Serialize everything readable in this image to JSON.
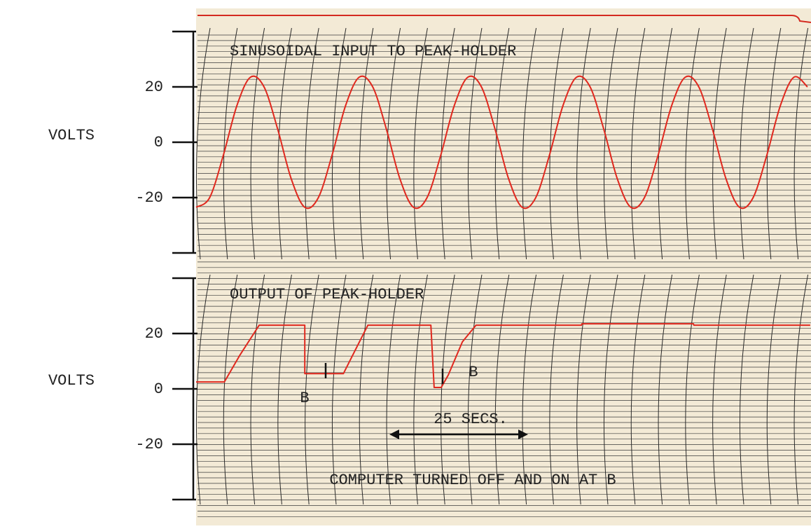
{
  "chart_data": [
    {
      "type": "line",
      "title": "SINUSOIDAL INPUT TO PEAK-HOLDER",
      "y_label": "VOLTS",
      "x": [
        0,
        2.5,
        5,
        7.5,
        10,
        12.5,
        15,
        17.5,
        20,
        22.5,
        25,
        27.5,
        30,
        32.5,
        35,
        37.5,
        40,
        42.5,
        45,
        47.5,
        50,
        52.5,
        55,
        57.5,
        60,
        62.5,
        65,
        67.5,
        70,
        72.5,
        75,
        77.5,
        80,
        82.5,
        85,
        87.5,
        90,
        92.5,
        95,
        97.5,
        100,
        102.5,
        105,
        107.5,
        110,
        112.5
      ],
      "values": [
        -23.5,
        -20,
        -4.8,
        13.2,
        23.5,
        20,
        4.8,
        -13.2,
        -23.5,
        -20,
        -4.8,
        13.2,
        23.5,
        20,
        4.8,
        -13.2,
        -23.5,
        -20,
        -4.8,
        13.2,
        23.5,
        20,
        4.8,
        -13.2,
        -23.5,
        -20,
        -4.8,
        13.2,
        23.5,
        20,
        4.8,
        -13.2,
        -23.5,
        -20,
        -4.8,
        13.2,
        23.5,
        20,
        4.8,
        -13.2,
        -23.5,
        -20,
        -4.8,
        13.2,
        23.5,
        20
      ],
      "color": "#e0281e",
      "xlim": [
        0,
        113
      ],
      "ylim": [
        -40,
        40
      ],
      "yticks": [
        -20,
        0,
        20
      ]
    },
    {
      "type": "line",
      "title": "OUTPUT OF PEAK-HOLDER",
      "y_label": "VOLTS",
      "x": [
        0,
        5.2,
        8,
        11.6,
        20,
        20,
        27.1,
        31.6,
        43.2,
        43.8,
        45.1,
        46.4,
        49,
        51.5,
        70.9,
        71,
        91.5,
        91.6,
        113
      ],
      "values": [
        2.5,
        2.5,
        12,
        23,
        23,
        5.5,
        5.5,
        23,
        23,
        0.5,
        0.5,
        5,
        17,
        23,
        23,
        23.5,
        23.5,
        23,
        23
      ],
      "color": "#e0281e",
      "xlim": [
        0,
        113
      ],
      "ylim": [
        -40,
        40
      ],
      "yticks": [
        -20,
        0,
        20
      ],
      "annotations": [
        "B",
        "B",
        "25 SECS.",
        "COMPUTER TURNED OFF AND ON AT B"
      ]
    }
  ]
}
